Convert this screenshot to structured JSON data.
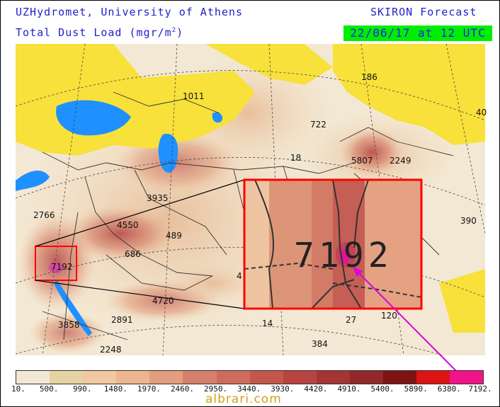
{
  "header": {
    "source": "UZHydromet, University of Athens",
    "forecast": "SKIRON Forecast",
    "variable": "Total Dust Load (mgr/m",
    "variable_sup": "2",
    "variable_close": ")",
    "valid_time": "22/06/17 at 12 UTC"
  },
  "map_labels": [
    {
      "text": "1011"
    },
    {
      "text": "186"
    },
    {
      "text": "722"
    },
    {
      "text": "5807"
    },
    {
      "text": "2249"
    },
    {
      "text": "18"
    },
    {
      "text": "3935"
    },
    {
      "text": "2766"
    },
    {
      "text": "4550"
    },
    {
      "text": "489"
    },
    {
      "text": "686"
    },
    {
      "text": "390"
    },
    {
      "text": "7192"
    },
    {
      "text": "4720"
    },
    {
      "text": "2891"
    },
    {
      "text": "3858"
    },
    {
      "text": "2248"
    },
    {
      "text": "14"
    },
    {
      "text": "27"
    },
    {
      "text": "120"
    },
    {
      "text": "384"
    },
    {
      "text": "40"
    },
    {
      "text": "4"
    }
  ],
  "zoom_inset": {
    "label": "7192"
  },
  "colorbar": {
    "ticks": [
      "10.",
      "500.",
      "990.",
      "1480.",
      "1970.",
      "2460.",
      "2950.",
      "3440.",
      "3930.",
      "4420.",
      "4910.",
      "5400.",
      "5890.",
      "6380.",
      "7192."
    ],
    "colors": [
      "#f2e8d6",
      "#e6d3a3",
      "#f0c8a2",
      "#eeb591",
      "#e29e7e",
      "#d5806c",
      "#cf6b5c",
      "#c4574c",
      "#b74441",
      "#a53535",
      "#93282a",
      "#7e1313",
      "#dc1414",
      "#f0148a"
    ]
  },
  "watermark": "albrari.com",
  "colors": {
    "header_text": "#2222cc",
    "stamp_bg": "#00ee00",
    "sea": "#1e90ff",
    "snow_low": "#f7e13a",
    "highlight": "#ff0000",
    "arrow": "#dd00dd"
  }
}
